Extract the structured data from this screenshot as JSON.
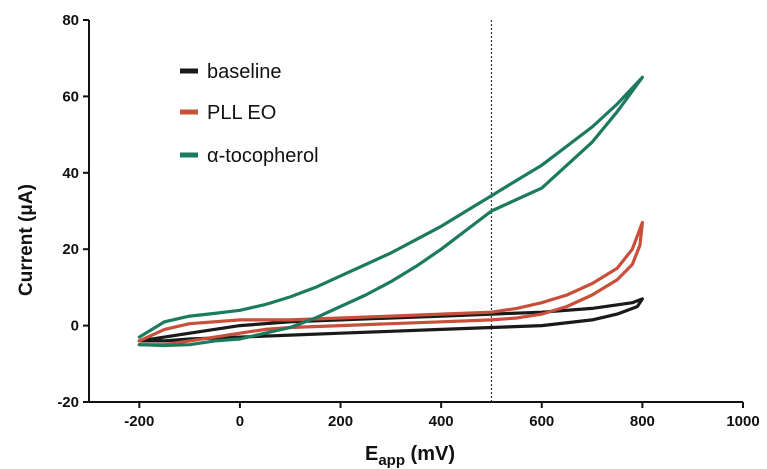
{
  "chart_data": {
    "type": "line",
    "title": "",
    "xlabel": {
      "main": "E",
      "sub": "app",
      "unit": " (mV)"
    },
    "ylabel": "Current (μA)",
    "xlim": [
      -300,
      1000
    ],
    "ylim": [
      -20,
      80
    ],
    "xticks": [
      -200,
      0,
      200,
      400,
      600,
      800,
      1000
    ],
    "yticks": [
      -20,
      0,
      20,
      40,
      60,
      80
    ],
    "grid": false,
    "legend_position": "top-left",
    "reference_line": {
      "x": 500,
      "style": "dotted"
    },
    "series": [
      {
        "name": "baseline",
        "color": "#1a1a1a",
        "forward": [
          [
            -200,
            -4
          ],
          [
            -150,
            -3
          ],
          [
            -100,
            -2
          ],
          [
            0,
            0
          ],
          [
            100,
            1
          ],
          [
            200,
            1.5
          ],
          [
            300,
            2
          ],
          [
            400,
            2.5
          ],
          [
            500,
            3
          ],
          [
            600,
            3.5
          ],
          [
            700,
            4.5
          ],
          [
            780,
            6
          ],
          [
            800,
            7
          ]
        ],
        "reverse": [
          [
            800,
            7
          ],
          [
            790,
            5
          ],
          [
            750,
            3
          ],
          [
            700,
            1.5
          ],
          [
            600,
            0
          ],
          [
            500,
            -0.5
          ],
          [
            400,
            -1
          ],
          [
            300,
            -1.5
          ],
          [
            200,
            -2
          ],
          [
            100,
            -2.5
          ],
          [
            0,
            -3
          ],
          [
            -100,
            -3.5
          ],
          [
            -150,
            -4
          ],
          [
            -200,
            -4
          ]
        ]
      },
      {
        "name": "PLL EO",
        "color": "#c8503a",
        "forward": [
          [
            -200,
            -4
          ],
          [
            -150,
            -1
          ],
          [
            -100,
            0.5
          ],
          [
            0,
            1.5
          ],
          [
            100,
            1.5
          ],
          [
            200,
            2
          ],
          [
            300,
            2.5
          ],
          [
            400,
            3
          ],
          [
            500,
            3.5
          ],
          [
            550,
            4.5
          ],
          [
            600,
            6
          ],
          [
            650,
            8
          ],
          [
            700,
            11
          ],
          [
            750,
            15
          ],
          [
            780,
            20
          ],
          [
            800,
            27
          ]
        ],
        "reverse": [
          [
            800,
            27
          ],
          [
            795,
            21
          ],
          [
            780,
            16
          ],
          [
            750,
            12
          ],
          [
            700,
            8
          ],
          [
            650,
            5
          ],
          [
            600,
            3
          ],
          [
            550,
            2
          ],
          [
            500,
            1.5
          ],
          [
            400,
            1
          ],
          [
            300,
            0.5
          ],
          [
            200,
            0
          ],
          [
            100,
            -0.5
          ],
          [
            50,
            -1
          ],
          [
            0,
            -2
          ],
          [
            -50,
            -3
          ],
          [
            -100,
            -4
          ],
          [
            -150,
            -5
          ],
          [
            -200,
            -5
          ]
        ]
      },
      {
        "name": "α-tocopherol",
        "color": "#1c7a5e",
        "forward": [
          [
            -200,
            -3
          ],
          [
            -150,
            1
          ],
          [
            -100,
            2.5
          ],
          [
            -50,
            3.2
          ],
          [
            0,
            4
          ],
          [
            50,
            5.5
          ],
          [
            100,
            7.5
          ],
          [
            150,
            10
          ],
          [
            200,
            13
          ],
          [
            250,
            16
          ],
          [
            300,
            19
          ],
          [
            350,
            22.5
          ],
          [
            400,
            26
          ],
          [
            450,
            30
          ],
          [
            500,
            34
          ],
          [
            550,
            38
          ],
          [
            600,
            42
          ],
          [
            650,
            47
          ],
          [
            700,
            52
          ],
          [
            750,
            58
          ],
          [
            800,
            65
          ]
        ],
        "reverse": [
          [
            800,
            65
          ],
          [
            750,
            56
          ],
          [
            700,
            48
          ],
          [
            650,
            42
          ],
          [
            600,
            36
          ],
          [
            550,
            33
          ],
          [
            500,
            30
          ],
          [
            450,
            25
          ],
          [
            400,
            20
          ],
          [
            350,
            15.5
          ],
          [
            300,
            11.5
          ],
          [
            250,
            8
          ],
          [
            200,
            5
          ],
          [
            150,
            2
          ],
          [
            100,
            -0.5
          ],
          [
            50,
            -2
          ],
          [
            0,
            -3.5
          ],
          [
            -50,
            -4
          ],
          [
            -100,
            -5
          ],
          [
            -150,
            -5.2
          ],
          [
            -200,
            -5
          ]
        ]
      }
    ]
  }
}
